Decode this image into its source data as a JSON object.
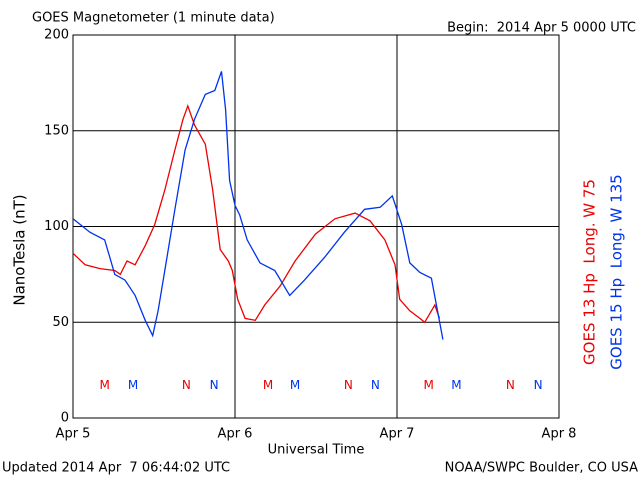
{
  "chart_data": {
    "type": "line",
    "title": "GOES Magnetometer (1 minute data)",
    "subtitle": "Begin:  2014 Apr 5 0000 UTC",
    "x_label": "Universal Time",
    "y_label": "NanoTesla (nT)",
    "footer_left": "Updated 2014 Apr  7 06:44:02 UTC",
    "footer_right": "NOAA/SWPC Boulder, CO USA",
    "xlim": [
      0,
      72
    ],
    "xticks": [
      {
        "value": 0,
        "label": "Apr 5"
      },
      {
        "value": 24,
        "label": "Apr 6"
      },
      {
        "value": 48,
        "label": "Apr 7"
      },
      {
        "value": 72,
        "label": "Apr 8"
      }
    ],
    "ylim": [
      0,
      200
    ],
    "yticks": [
      0,
      50,
      100,
      150,
      200
    ],
    "grid": true,
    "series": [
      {
        "name": "GOES 13 Hp  Long. W 75",
        "color": "#ee0000",
        "x": [
          0,
          1.8,
          4,
          6.2,
          7,
          8,
          9.2,
          10.7,
          12.1,
          13.6,
          15.1,
          16.3,
          17,
          18,
          19.6,
          20.7,
          21.8,
          23,
          23.6,
          24.4,
          25.5,
          27,
          28.4,
          30.7,
          32.9,
          35.9,
          38.8,
          41.8,
          44,
          46.2,
          47.7,
          48.4,
          49.9,
          51.4,
          52.1,
          53.6,
          54.3
        ],
        "values": [
          86,
          80,
          78,
          77,
          75,
          82,
          80,
          90,
          101,
          119,
          140,
          156,
          163,
          153,
          143,
          119,
          88,
          82,
          77,
          62,
          52,
          51,
          59,
          69,
          82,
          96,
          104,
          107,
          103,
          93,
          80,
          62,
          56,
          52,
          50,
          59,
          52
        ]
      },
      {
        "name": "GOES 15 Hp  Long. W 135",
        "color": "#0033ee",
        "x": [
          0,
          2.5,
          4.7,
          6.2,
          7.7,
          9.2,
          10.7,
          11.8,
          12.6,
          13.6,
          15.1,
          16.6,
          18,
          19.6,
          21,
          22,
          22.6,
          23.2,
          24,
          24.7,
          25.8,
          27.7,
          29.9,
          32.1,
          34.3,
          37.3,
          40.2,
          43.2,
          45.5,
          47.3,
          48.7,
          49.9,
          51.4,
          53.1,
          54,
          54.8
        ],
        "values": [
          104,
          97,
          93,
          75,
          72,
          64,
          51,
          43,
          56,
          77,
          109,
          140,
          156,
          169,
          171,
          181,
          161,
          124,
          111,
          106,
          93,
          81,
          77,
          64,
          72,
          84,
          97,
          109,
          110,
          116,
          101,
          81,
          76,
          73,
          56,
          41
        ]
      }
    ],
    "annotations": [
      {
        "text": "M",
        "x": 4.7,
        "y": 17,
        "color": "#ee0000"
      },
      {
        "text": "M",
        "x": 8.9,
        "y": 17,
        "color": "#0033ee"
      },
      {
        "text": "N",
        "x": 16.8,
        "y": 17,
        "color": "#ee0000"
      },
      {
        "text": "N",
        "x": 20.9,
        "y": 17,
        "color": "#0033ee"
      },
      {
        "text": "M",
        "x": 28.9,
        "y": 17,
        "color": "#ee0000"
      },
      {
        "text": "M",
        "x": 32.9,
        "y": 17,
        "color": "#0033ee"
      },
      {
        "text": "N",
        "x": 40.8,
        "y": 17,
        "color": "#ee0000"
      },
      {
        "text": "N",
        "x": 44.8,
        "y": 17,
        "color": "#0033ee"
      },
      {
        "text": "M",
        "x": 52.7,
        "y": 17,
        "color": "#ee0000"
      },
      {
        "text": "M",
        "x": 56.8,
        "y": 17,
        "color": "#0033ee"
      },
      {
        "text": "N",
        "x": 64.8,
        "y": 17,
        "color": "#ee0000"
      },
      {
        "text": "N",
        "x": 68.9,
        "y": 17,
        "color": "#0033ee"
      }
    ]
  }
}
